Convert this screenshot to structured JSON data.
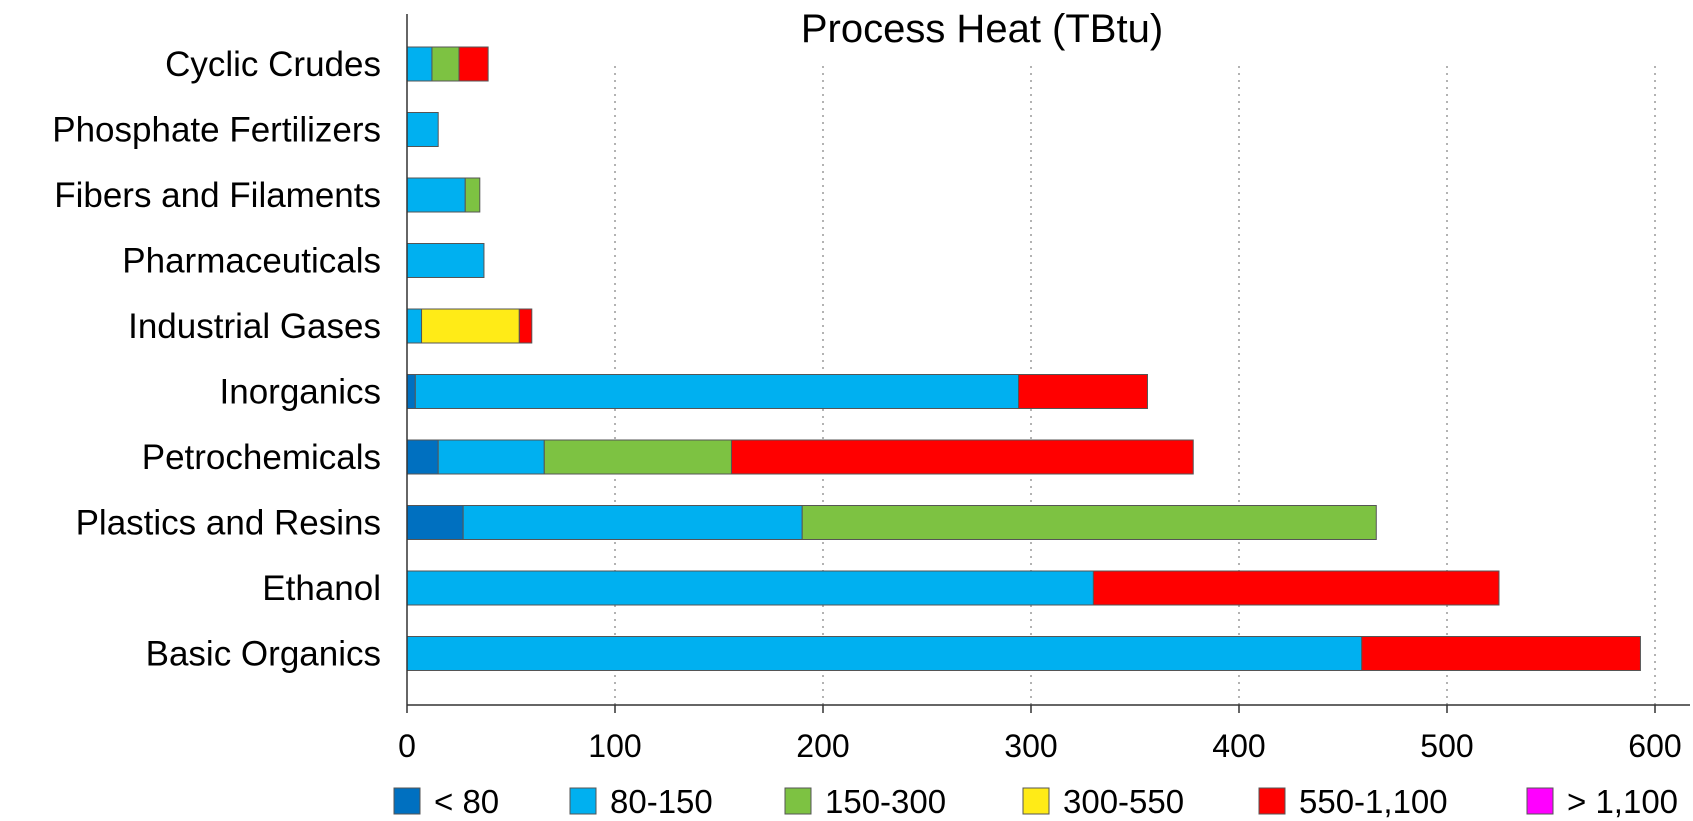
{
  "chart_data": {
    "type": "bar",
    "orientation": "horizontal",
    "stacked": true,
    "title": "Process Heat (TBtu)",
    "xlabel": "",
    "ylabel": "",
    "xlim": [
      0,
      600
    ],
    "xticks": [
      0,
      100,
      200,
      300,
      400,
      500,
      600
    ],
    "xtick_labels": [
      "0",
      "100",
      "200",
      "300",
      "400",
      "500",
      "600"
    ],
    "grid": "vertical dotted",
    "legend_position": "bottom",
    "categories": [
      "Cyclic Crudes",
      "Phosphate Fertilizers",
      "Fibers and Filaments",
      "Pharmaceuticals",
      "Industrial Gases",
      "Inorganics",
      "Petrochemicals",
      "Plastics and Resins",
      "Ethanol",
      "Basic Organics"
    ],
    "series": [
      {
        "name": "< 80",
        "color": "#0070c0",
        "values": [
          0,
          0,
          0,
          0,
          0,
          4,
          15,
          27,
          0,
          0
        ]
      },
      {
        "name": "80-150",
        "color": "#00b0f0",
        "values": [
          12,
          15,
          28,
          37,
          7,
          290,
          51,
          163,
          330,
          459
        ]
      },
      {
        "name": "150-300",
        "color": "#7dc242",
        "values": [
          13,
          0,
          7,
          0,
          0,
          0,
          90,
          276,
          0,
          0
        ]
      },
      {
        "name": "300-550",
        "color": "#ffeb17",
        "values": [
          0,
          0,
          0,
          0,
          47,
          0,
          0,
          0,
          0,
          0
        ]
      },
      {
        "name": "550-1,100",
        "color": "#ff0000",
        "values": [
          14,
          0,
          0,
          0,
          6,
          62,
          222,
          0,
          195,
          134
        ]
      },
      {
        "name": "> 1,100",
        "color": "#ff00ff",
        "values": [
          0,
          0,
          0,
          0,
          0,
          0,
          0,
          0,
          0,
          0
        ]
      }
    ]
  }
}
